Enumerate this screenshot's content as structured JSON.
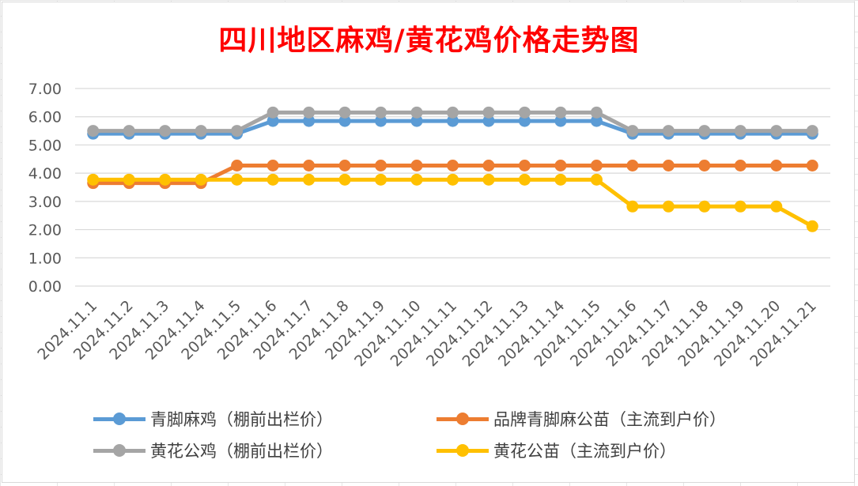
{
  "chart_data": {
    "type": "line",
    "title": "四川地区麻鸡/黄花鸡价格走势图",
    "categories": [
      "2024.11.1",
      "2024.11.2",
      "2024.11.3",
      "2024.11.4",
      "2024.11.5",
      "2024.11.6",
      "2024.11.7",
      "2024.11.8",
      "2024.11.9",
      "2024.11.10",
      "2024.11.11",
      "2024.11.12",
      "2024.11.13",
      "2024.11.14",
      "2024.11.15",
      "2024.11.16",
      "2024.11.17",
      "2024.11.18",
      "2024.11.19",
      "2024.11.20",
      "2024.11.21"
    ],
    "yticks": [
      "0.00",
      "1.00",
      "2.00",
      "3.00",
      "4.00",
      "5.00",
      "6.00",
      "7.00"
    ],
    "ylim": [
      0,
      7
    ],
    "grid": true,
    "legend_position": "bottom",
    "series": [
      {
        "name": "青脚麻鸡（棚前出栏价）",
        "color": "#5b9bd5",
        "values": [
          5.4,
          5.4,
          5.4,
          5.4,
          5.4,
          5.85,
          5.85,
          5.85,
          5.85,
          5.85,
          5.85,
          5.85,
          5.85,
          5.85,
          5.85,
          5.4,
          5.4,
          5.4,
          5.4,
          5.4,
          5.4
        ]
      },
      {
        "name": "品牌青脚麻公苗（主流到户价）",
        "color": "#ed7d31",
        "values": [
          3.65,
          3.65,
          3.65,
          3.65,
          4.27,
          4.27,
          4.27,
          4.27,
          4.27,
          4.27,
          4.27,
          4.27,
          4.27,
          4.27,
          4.27,
          4.27,
          4.27,
          4.27,
          4.27,
          4.27,
          4.27
        ]
      },
      {
        "name": "黄花公鸡（棚前出栏价）",
        "color": "#a5a5a5",
        "values": [
          5.5,
          5.5,
          5.5,
          5.5,
          5.5,
          6.15,
          6.15,
          6.15,
          6.15,
          6.15,
          6.15,
          6.15,
          6.15,
          6.15,
          6.15,
          5.5,
          5.5,
          5.5,
          5.5,
          5.5,
          5.5
        ]
      },
      {
        "name": "黄花公苗（主流到户价）",
        "color": "#ffc000",
        "values": [
          3.77,
          3.77,
          3.77,
          3.77,
          3.77,
          3.77,
          3.77,
          3.77,
          3.77,
          3.77,
          3.77,
          3.77,
          3.77,
          3.77,
          3.77,
          2.82,
          2.82,
          2.82,
          2.82,
          2.82,
          2.12
        ]
      }
    ]
  }
}
